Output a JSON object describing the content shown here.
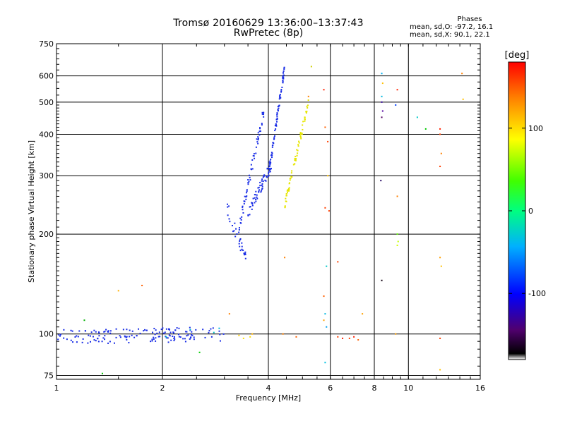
{
  "header": {
    "title": "Tromsø 20160629 13:36:00–13:37:43",
    "subtitle": "RwPretec (8p)"
  },
  "phases": {
    "title": "Phases",
    "o_line": "mean, sd,O: -97.2, 16.1",
    "x_line": "mean, sd,X: 90.1, 22.1"
  },
  "colorbar": {
    "label": "[deg]",
    "ticks": [
      "100",
      "0",
      "-100"
    ],
    "tick_values": [
      100,
      0,
      -100
    ],
    "range": [
      -180,
      180
    ]
  },
  "chart_data": {
    "type": "scatter",
    "title": "Tromsø 20160629 13:36:00–13:37:43",
    "subtitle": "RwPretec (8p)",
    "xlabel": "Frequency [MHz]",
    "ylabel": "Stationary phase Virtual Height [km]",
    "x_scale": "log",
    "y_scale": "log",
    "xlim": [
      1,
      16
    ],
    "ylim": [
      73,
      750
    ],
    "x_ticks": [
      1,
      2,
      4,
      6,
      8,
      10,
      16
    ],
    "x_tick_labels": [
      "1",
      "2",
      "4",
      "6",
      "8",
      "10",
      "16"
    ],
    "y_ticks": [
      75,
      100,
      200,
      300,
      400,
      500,
      600,
      750
    ],
    "y_tick_labels": [
      "75",
      "100",
      "200",
      "300",
      "400",
      "500",
      "600",
      "750"
    ],
    "grid": true,
    "series": [
      {
        "name": "O",
        "color": "#1a2ee6",
        "segments": [
          {
            "f0": 1.0,
            "f1": 3.0,
            "h0": 98,
            "h1": 100,
            "jitter": 0.05,
            "n": 150
          },
          {
            "f0": 3.05,
            "f1": 3.45,
            "h0": 240,
            "h1": 170,
            "jitter": 0.05,
            "n": 30
          },
          {
            "f0": 3.3,
            "f1": 3.9,
            "h0": 210,
            "h1": 480,
            "jitter": 0.04,
            "n": 60
          },
          {
            "f0": 3.5,
            "f1": 4.1,
            "h0": 230,
            "h1": 330,
            "jitter": 0.04,
            "n": 60
          },
          {
            "f0": 4.0,
            "f1": 4.45,
            "h0": 300,
            "h1": 640,
            "jitter": 0.03,
            "n": 80
          }
        ]
      },
      {
        "name": "X",
        "color": "#e6e600",
        "segments": [
          {
            "f0": 4.45,
            "f1": 5.2,
            "h0": 245,
            "h1": 500,
            "jitter": 0.03,
            "n": 70
          }
        ]
      }
    ],
    "color_points": [
      {
        "f": 1.2,
        "h": 110,
        "color": "#00b000"
      },
      {
        "f": 1.35,
        "h": 76,
        "color": "#00c000"
      },
      {
        "f": 1.5,
        "h": 135,
        "color": "#ffb000"
      },
      {
        "f": 1.75,
        "h": 140,
        "color": "#ff6000"
      },
      {
        "f": 2.05,
        "h": 98,
        "color": "#00c8c8"
      },
      {
        "f": 2.4,
        "h": 103,
        "color": "#00b4d8"
      },
      {
        "f": 2.55,
        "h": 88,
        "color": "#00d000"
      },
      {
        "f": 2.8,
        "h": 101,
        "color": "#00c0c0"
      },
      {
        "f": 2.9,
        "h": 104,
        "color": "#00b8e0"
      },
      {
        "f": 3.1,
        "h": 115,
        "color": "#ff8000"
      },
      {
        "f": 3.3,
        "h": 99,
        "color": "#ffd000"
      },
      {
        "f": 3.4,
        "h": 97,
        "color": "#ffe000"
      },
      {
        "f": 3.55,
        "h": 98,
        "color": "#ffe000"
      },
      {
        "f": 3.6,
        "h": 100,
        "color": "#ffb000"
      },
      {
        "f": 4.4,
        "h": 100,
        "color": "#ff8000"
      },
      {
        "f": 4.45,
        "h": 170,
        "color": "#ff8000"
      },
      {
        "f": 4.8,
        "h": 98,
        "color": "#ff6000"
      },
      {
        "f": 5.3,
        "h": 640,
        "color": "#d0d000"
      },
      {
        "f": 5.2,
        "h": 520,
        "color": "#ff8000"
      },
      {
        "f": 5.75,
        "h": 545,
        "color": "#ff2000"
      },
      {
        "f": 5.8,
        "h": 420,
        "color": "#ff6000"
      },
      {
        "f": 5.9,
        "h": 380,
        "color": "#ff4000"
      },
      {
        "f": 5.8,
        "h": 240,
        "color": "#ff4000"
      },
      {
        "f": 5.95,
        "h": 235,
        "color": "#ff4000"
      },
      {
        "f": 5.85,
        "h": 160,
        "color": "#00c8c8"
      },
      {
        "f": 5.75,
        "h": 130,
        "color": "#ff6000"
      },
      {
        "f": 5.8,
        "h": 115,
        "color": "#00b8e0"
      },
      {
        "f": 5.75,
        "h": 110,
        "color": "#ffa000"
      },
      {
        "f": 5.85,
        "h": 105,
        "color": "#00a0f0"
      },
      {
        "f": 5.8,
        "h": 82,
        "color": "#00c0e0"
      },
      {
        "f": 5.9,
        "h": 300,
        "color": "#ffc000"
      },
      {
        "f": 6.3,
        "h": 98,
        "color": "#ff4000"
      },
      {
        "f": 6.5,
        "h": 97,
        "color": "#ff2000"
      },
      {
        "f": 6.8,
        "h": 97,
        "color": "#ff4000"
      },
      {
        "f": 7.0,
        "h": 98,
        "color": "#ff2000"
      },
      {
        "f": 7.2,
        "h": 96,
        "color": "#ff6000"
      },
      {
        "f": 7.4,
        "h": 115,
        "color": "#ffa000"
      },
      {
        "f": 6.3,
        "h": 165,
        "color": "#ff4000"
      },
      {
        "f": 8.4,
        "h": 610,
        "color": "#00b0f0"
      },
      {
        "f": 8.45,
        "h": 570,
        "color": "#ffc000"
      },
      {
        "f": 8.4,
        "h": 520,
        "color": "#00b8e0"
      },
      {
        "f": 8.4,
        "h": 500,
        "color": "#3000a0"
      },
      {
        "f": 8.45,
        "h": 470,
        "color": "#5000a0"
      },
      {
        "f": 8.4,
        "h": 450,
        "color": "#500060"
      },
      {
        "f": 8.35,
        "h": 290,
        "color": "#200060"
      },
      {
        "f": 8.4,
        "h": 145,
        "color": "#100010"
      },
      {
        "f": 9.3,
        "h": 545,
        "color": "#ff2000"
      },
      {
        "f": 9.2,
        "h": 490,
        "color": "#0040ff"
      },
      {
        "f": 9.3,
        "h": 260,
        "color": "#ff8000"
      },
      {
        "f": 9.3,
        "h": 200,
        "color": "#60ff00"
      },
      {
        "f": 9.35,
        "h": 190,
        "color": "#c0ff00"
      },
      {
        "f": 9.3,
        "h": 185,
        "color": "#d0ff00"
      },
      {
        "f": 9.2,
        "h": 100,
        "color": "#ffa000"
      },
      {
        "f": 10.6,
        "h": 450,
        "color": "#00c8c8"
      },
      {
        "f": 11.2,
        "h": 415,
        "color": "#00c800"
      },
      {
        "f": 12.3,
        "h": 415,
        "color": "#ff2000"
      },
      {
        "f": 12.3,
        "h": 400,
        "color": "#ff4000"
      },
      {
        "f": 12.4,
        "h": 350,
        "color": "#ff8000"
      },
      {
        "f": 12.3,
        "h": 320,
        "color": "#ff4000"
      },
      {
        "f": 12.3,
        "h": 170,
        "color": "#ffa000"
      },
      {
        "f": 12.4,
        "h": 160,
        "color": "#ffc000"
      },
      {
        "f": 12.3,
        "h": 97,
        "color": "#ff4000"
      },
      {
        "f": 12.3,
        "h": 78,
        "color": "#ffc000"
      },
      {
        "f": 14.2,
        "h": 610,
        "color": "#ff8000"
      },
      {
        "f": 14.3,
        "h": 510,
        "color": "#ffc000"
      }
    ]
  }
}
